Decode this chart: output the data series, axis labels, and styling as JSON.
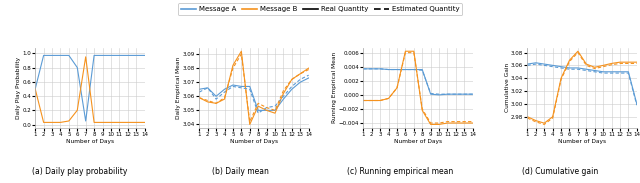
{
  "days": [
    1,
    2,
    3,
    4,
    5,
    6,
    7,
    8,
    9,
    10,
    11,
    12,
    13,
    14
  ],
  "color_A": "#5b9bd5",
  "color_B": "#f5921e",
  "subplot_titles": [
    "(a) Daily play probability",
    "(b) Daily mean",
    "(c) Running empirical mean",
    "(d) Cumulative gain"
  ],
  "ylabel_a": "Daily Play Probability",
  "ylabel_b": "Daily Empirical Mean",
  "ylabel_c": "Running Empirical Mean",
  "ylabel_d": "Cumulative Gain",
  "xlabel": "Number of Days",
  "legend_labels": [
    "Message A",
    "Message B",
    "Real Quantity",
    "Estimated Quantity"
  ],
  "prob_A": [
    0.5,
    0.97,
    0.97,
    0.97,
    0.97,
    0.8,
    0.05,
    0.97,
    0.97,
    0.97,
    0.97,
    0.97,
    0.97,
    0.97
  ],
  "prob_B": [
    0.5,
    0.03,
    0.03,
    0.03,
    0.05,
    0.2,
    0.95,
    0.03,
    0.03,
    0.03,
    0.03,
    0.03,
    0.03,
    0.03
  ],
  "mean_A_real": [
    3.065,
    3.066,
    3.06,
    3.065,
    3.068,
    3.067,
    3.067,
    3.05,
    3.05,
    3.05,
    3.058,
    3.065,
    3.07,
    3.073
  ],
  "mean_B_real": [
    3.059,
    3.056,
    3.055,
    3.058,
    3.082,
    3.092,
    3.04,
    3.053,
    3.05,
    3.048,
    3.062,
    3.072,
    3.076,
    3.08
  ],
  "mean_A_est": [
    3.063,
    3.066,
    3.058,
    3.063,
    3.067,
    3.066,
    3.065,
    3.048,
    3.052,
    3.053,
    3.06,
    3.067,
    3.072,
    3.075
  ],
  "mean_B_est": [
    3.059,
    3.057,
    3.055,
    3.059,
    3.08,
    3.09,
    3.042,
    3.055,
    3.052,
    3.05,
    3.064,
    3.072,
    3.076,
    3.079
  ],
  "run_A_real": [
    0.0037,
    0.0037,
    0.0037,
    0.0036,
    0.0036,
    0.0036,
    0.0036,
    0.0036,
    0.0001,
    0.0,
    0.0001,
    0.0001,
    0.0001,
    0.0001
  ],
  "run_B_real": [
    -0.0008,
    -0.0008,
    -0.0008,
    -0.0005,
    0.001,
    0.0062,
    0.0062,
    -0.0022,
    -0.0042,
    -0.0042,
    -0.004,
    -0.004,
    -0.004,
    -0.004
  ],
  "run_A_est": [
    0.0037,
    0.0037,
    0.0037,
    0.0036,
    0.0036,
    0.0036,
    0.0036,
    0.0035,
    0.0002,
    0.0001,
    0.0001,
    0.0001,
    0.0001,
    0.0001
  ],
  "run_B_est": [
    -0.0008,
    -0.0008,
    -0.0008,
    -0.0005,
    0.001,
    0.006,
    0.006,
    -0.002,
    -0.004,
    -0.004,
    -0.0038,
    -0.0038,
    -0.0038,
    -0.0038
  ],
  "cum_A_real": [
    3.062,
    3.064,
    3.062,
    3.06,
    3.058,
    3.056,
    3.056,
    3.054,
    3.052,
    3.05,
    3.05,
    3.05,
    3.05,
    3.0
  ],
  "cum_B_real": [
    2.98,
    2.974,
    2.97,
    2.98,
    3.04,
    3.068,
    3.082,
    3.062,
    3.057,
    3.06,
    3.063,
    3.065,
    3.065,
    3.065
  ],
  "cum_A_est": [
    3.06,
    3.062,
    3.06,
    3.058,
    3.056,
    3.054,
    3.054,
    3.052,
    3.05,
    3.048,
    3.048,
    3.048,
    3.048,
    2.998
  ],
  "cum_B_est": [
    2.978,
    2.972,
    2.968,
    2.978,
    3.038,
    3.066,
    3.08,
    3.06,
    3.055,
    3.058,
    3.061,
    3.063,
    3.063,
    3.063
  ]
}
